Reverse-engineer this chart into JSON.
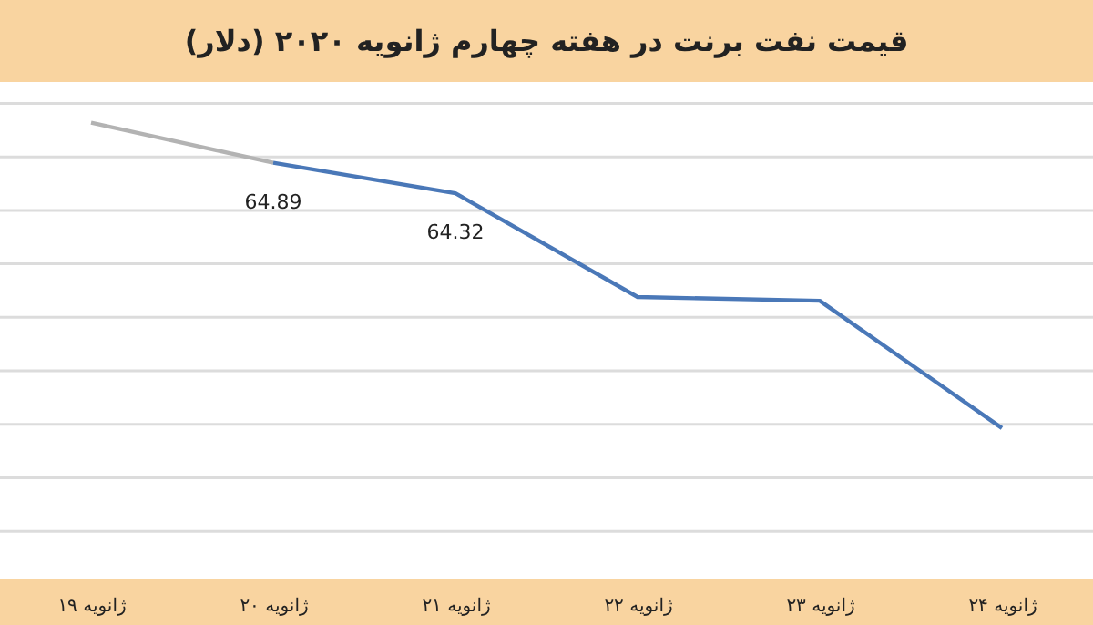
{
  "chart_data": {
    "type": "line",
    "title": "قیمت نفت برنت در هفته چهارم ژانویه ۲۰۲۰ (دلار)",
    "categories": [
      "۱۹ ژانویه",
      "۲۰ ژانویه",
      "۲۱ ژانویه",
      "۲۲ ژانویه",
      "۲۳ ژانویه",
      "۲۴ ژانویه"
    ],
    "series": [
      {
        "color": "#b3b3b3",
        "values": [
          65.64,
          64.89,
          null,
          null,
          null,
          null
        ]
      },
      {
        "color": "#4a78b8",
        "values": [
          null,
          64.89,
          64.32,
          62.38,
          62.31,
          59.93
        ],
        "value_labels": [
          null,
          "64.89",
          "64.32",
          null,
          null,
          null
        ]
      }
    ],
    "ylim": [
      57.1,
      66.4
    ],
    "yticks": [
      {
        "value": 58,
        "label": null
      },
      {
        "value": 59,
        "label": null
      },
      {
        "value": 60,
        "label": null
      },
      {
        "value": 61,
        "label": null
      },
      {
        "value": 62,
        "label": null
      },
      {
        "value": 63,
        "label": null
      },
      {
        "value": 64,
        "label": null
      },
      {
        "value": 65,
        "label": null
      },
      {
        "value": 66,
        "label": null
      }
    ],
    "grid": "y",
    "marker": "none",
    "line_style": "solid"
  }
}
